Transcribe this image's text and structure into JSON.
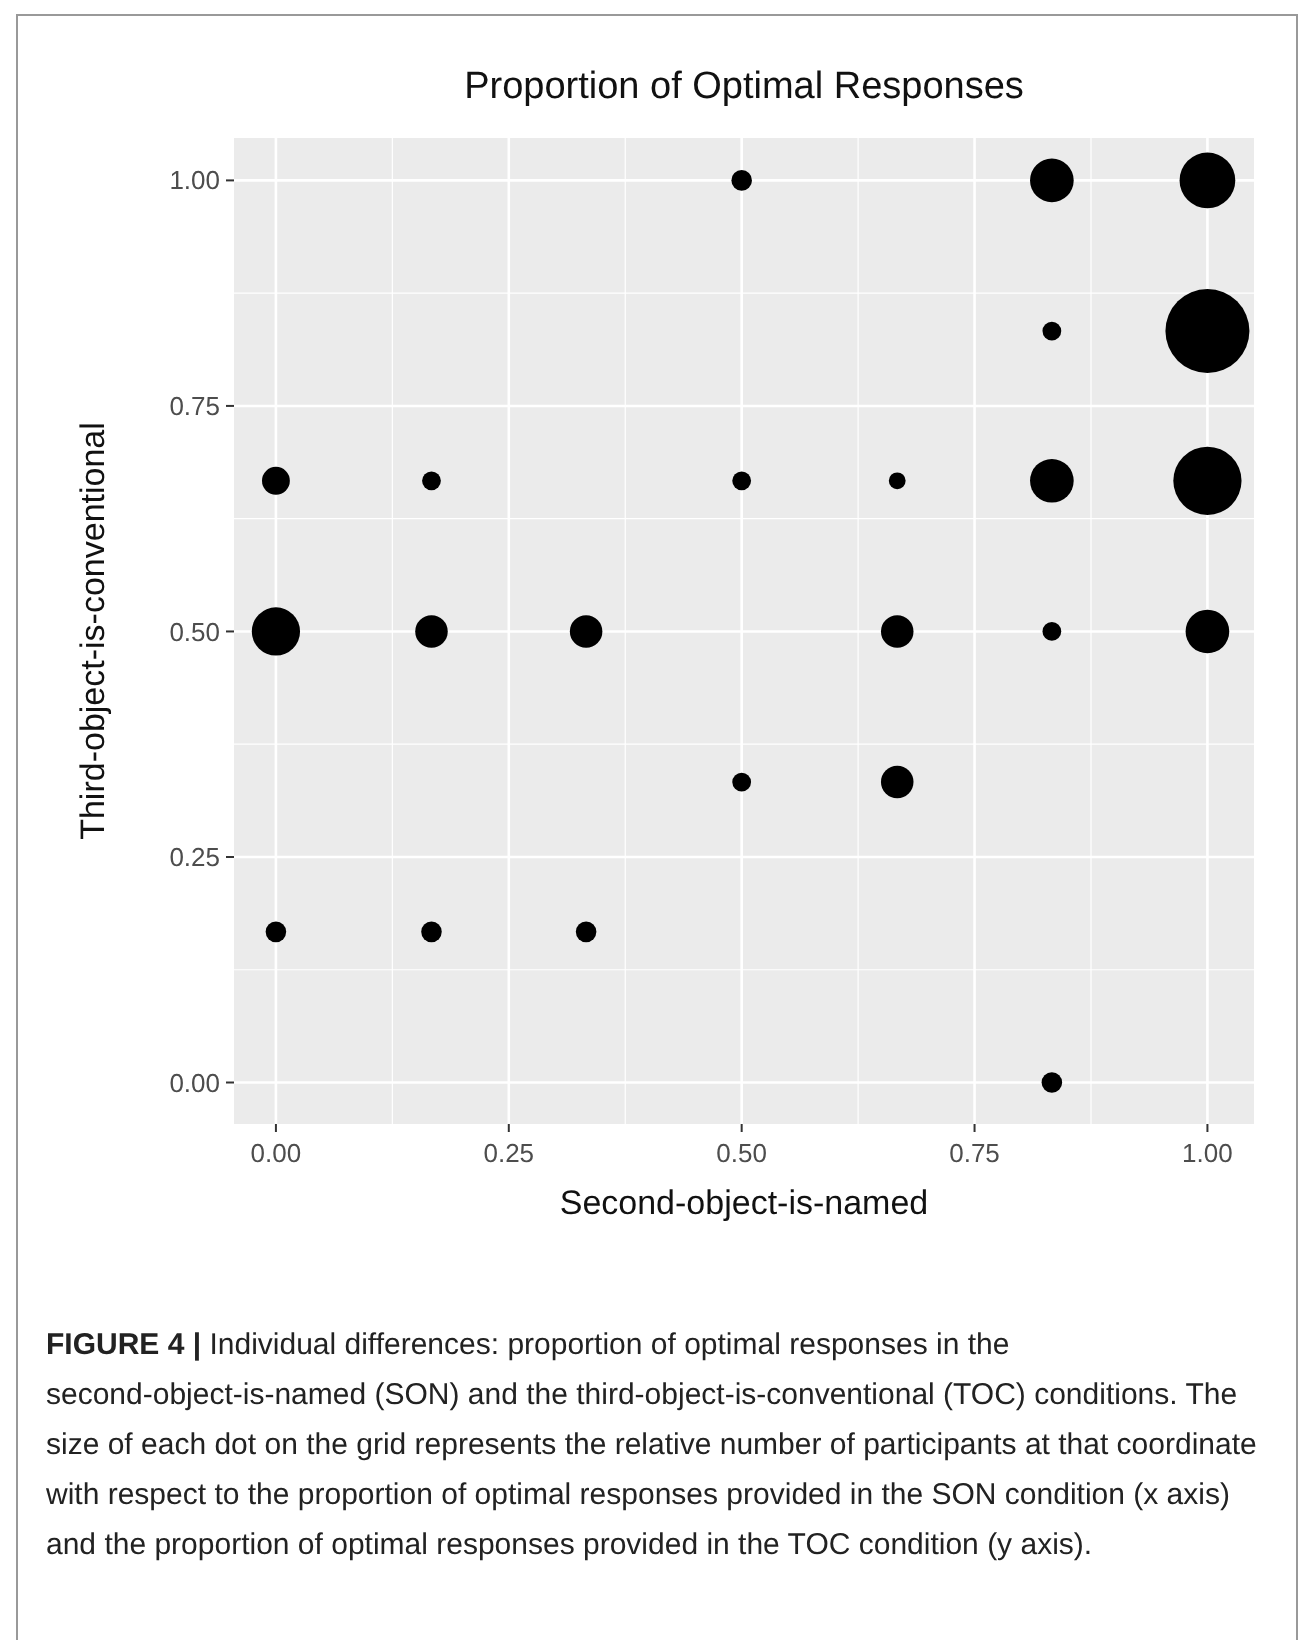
{
  "chart_data": {
    "type": "bubble",
    "title": "Proportion of Optimal Responses",
    "xlabel": "Second-object-is-named",
    "ylabel": "Third-object-is-conventional",
    "annotations": [
      "FIGURE 4 | Individual differences: proportion of optimal responses in the second-object-is-named (SON) and the third-object-is-conventional (TOC) conditions. The size of each dot on the grid represents the relative number of participants at that coordinate with respect to the proportion of optimal responses provided in the SON condition (x axis) and the proportion of optimal responses provided in the TOC condition (y axis)."
    ],
    "x": [
      0.5,
      0.833,
      1,
      0.833,
      1,
      0,
      0.167,
      0.5,
      0.667,
      0.833,
      1,
      0,
      0.167,
      0.333,
      0.667,
      0.833,
      1,
      0.5,
      0.667,
      0,
      0.167,
      0.333,
      0.833
    ],
    "values": [
      1,
      1,
      1,
      0.833,
      0.833,
      0.667,
      0.667,
      0.667,
      0.667,
      0.667,
      0.667,
      0.5,
      0.5,
      0.5,
      0.5,
      0.5,
      0.5,
      0.333,
      0.333,
      0.167,
      0.167,
      0.167,
      0
    ],
    "sizes": [
      0.06,
      0.27,
      0.44,
      0.05,
      1,
      0.11,
      0.05,
      0.05,
      0.04,
      0.27,
      0.66,
      0.33,
      0.15,
      0.15,
      0.15,
      0.05,
      0.27,
      0.05,
      0.15,
      0.06,
      0.06,
      0.06,
      0.06
    ],
    "color": "#000000",
    "xlim": [
      -0.045,
      1.05
    ],
    "ylim": [
      -0.046,
      1.047
    ],
    "xticks": [
      {
        "value": 0,
        "label": "0.00"
      },
      {
        "value": 0.25,
        "label": "0.25"
      },
      {
        "value": 0.5,
        "label": "0.50"
      },
      {
        "value": 0.75,
        "label": "0.75"
      },
      {
        "value": 1,
        "label": "1.00"
      }
    ],
    "yticks": [
      {
        "value": 0,
        "label": "0.00"
      },
      {
        "value": 0.25,
        "label": "0.25"
      },
      {
        "value": 0.5,
        "label": "0.50"
      },
      {
        "value": 0.75,
        "label": "0.75"
      },
      {
        "value": 1,
        "label": "1.00"
      }
    ],
    "grid": true
  }
}
